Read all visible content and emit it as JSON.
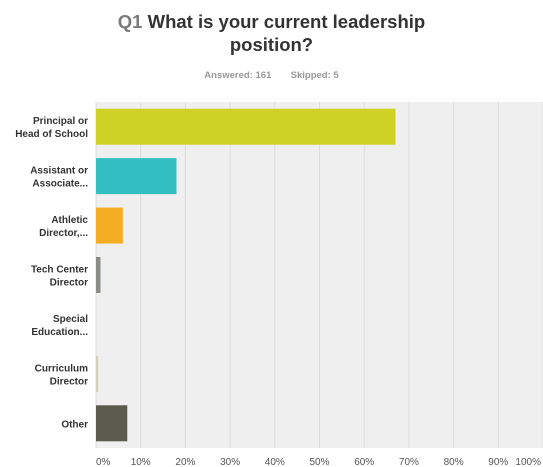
{
  "question": {
    "number": "Q1",
    "title_line1": "What is your current leadership",
    "title_line2": "position?"
  },
  "summary": {
    "answered_label": "Answered:",
    "answered": "161",
    "skipped_label": "Skipped:",
    "skipped": "5"
  },
  "colors": {
    "plot_background": "#efefef",
    "gridline": "#dcdcdc",
    "label_text": "#333333",
    "tick_text": "#555555"
  },
  "chart_data": {
    "type": "bar",
    "orientation": "horizontal",
    "categories": [
      [
        "Principal or",
        "Head of School"
      ],
      [
        "Assistant or",
        "Associate..."
      ],
      [
        "Athletic",
        "Director,..."
      ],
      [
        "Tech Center",
        "Director"
      ],
      [
        "Special",
        "Education..."
      ],
      [
        "Curriculum",
        "Director"
      ],
      [
        "Other"
      ]
    ],
    "values": [
      67,
      18,
      6,
      1,
      0,
      0.5,
      7
    ],
    "bar_colors": [
      "#cdd225",
      "#33bfc2",
      "#f5ad24",
      "#8b8e86",
      "#c9c9c9",
      "#d7d0b7",
      "#5a5a4f"
    ],
    "xlim": [
      0,
      100
    ],
    "xticks": [
      "0%",
      "10%",
      "20%",
      "30%",
      "40%",
      "50%",
      "60%",
      "70%",
      "80%",
      "90%",
      "100%"
    ],
    "grid": true,
    "title": "What is your current leadership position?",
    "xlabel": "",
    "ylabel": ""
  }
}
